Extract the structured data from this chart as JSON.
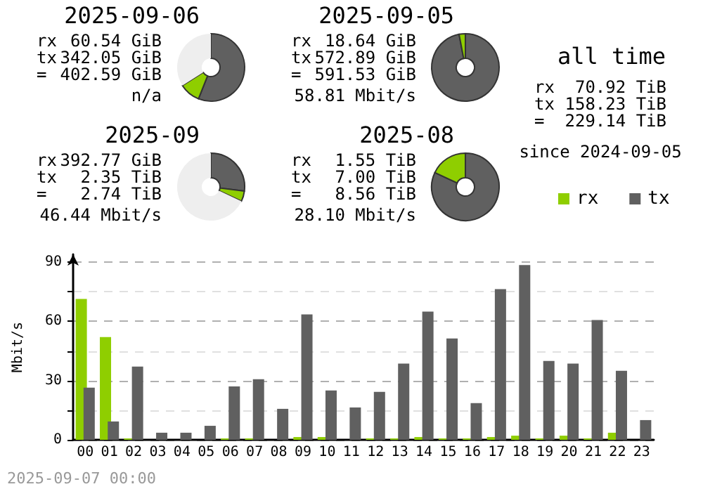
{
  "chart_data": [
    {
      "type": "donut",
      "title": "2025-09-06",
      "categories": [
        null,
        null,
        null
      ],
      "values": [
        56,
        10,
        34
      ],
      "colors": [
        "#606060",
        "#8fce00",
        "#eeeeee"
      ],
      "annotations": [
        "rx 60.54 GiB",
        "tx 342.05 GiB",
        "= 402.59 GiB",
        "n/a"
      ]
    },
    {
      "type": "donut",
      "title": "2025-09-05",
      "categories": [
        null,
        null
      ],
      "values": [
        97,
        3
      ],
      "colors": [
        "#606060",
        "#8fce00"
      ],
      "annotations": [
        "rx 18.64 GiB",
        "tx 572.89 GiB",
        "= 591.53 GiB",
        "58.81 Mbit/s"
      ]
    },
    {
      "type": "donut",
      "title": "2025-09",
      "categories": [
        null,
        null,
        null
      ],
      "values": [
        27,
        5,
        68
      ],
      "colors": [
        "#606060",
        "#8fce00",
        "#eeeeee"
      ],
      "annotations": [
        "rx 392.77 GiB",
        "tx 2.35 TiB",
        "= 2.74 TiB",
        "46.44 Mbit/s"
      ]
    },
    {
      "type": "donut",
      "title": "2025-08",
      "categories": [
        null,
        null
      ],
      "values": [
        82,
        18
      ],
      "colors": [
        "#606060",
        "#8fce00"
      ],
      "annotations": [
        "rx 1.55 TiB",
        "tx 7.00 TiB",
        "= 8.56 TiB",
        "28.10 Mbit/s"
      ]
    },
    {
      "type": "other",
      "title": "all time",
      "annotations": [
        "rx 70.92 TiB",
        "tx 158.23 TiB",
        "= 229.14 TiB",
        "since 2024-09-05"
      ]
    },
    {
      "type": "bar",
      "ylabel": "Mbit/s",
      "categories": [
        "00",
        "01",
        "02",
        "03",
        "04",
        "05",
        "06",
        "07",
        "08",
        "09",
        "10",
        "11",
        "12",
        "13",
        "14",
        "15",
        "16",
        "17",
        "18",
        "19",
        "20",
        "21",
        "22",
        "23"
      ],
      "series": [
        {
          "name": "rx",
          "color": "#8fce00",
          "values": [
            71.4,
            52.1,
            0.7,
            0,
            0,
            0,
            0.7,
            0.7,
            0,
            1.4,
            1.4,
            0,
            0.7,
            0.7,
            1.4,
            0.7,
            0.7,
            1.4,
            2.1,
            0.7,
            2.1,
            0.7,
            3.6,
            0
          ]
        },
        {
          "name": "tx",
          "color": "#606060",
          "values": [
            26.4,
            9.3,
            37.1,
            3.6,
            3.6,
            7.1,
            27.1,
            30.7,
            15.7,
            63.6,
            25,
            16.4,
            24.3,
            38.6,
            65,
            51.4,
            18.6,
            76.4,
            88.6,
            40,
            38.6,
            60.7,
            35,
            10
          ]
        }
      ],
      "ylim": [
        0,
        94
      ],
      "yticks": [
        0,
        {
          "value": 15,
          "label": null
        },
        30,
        {
          "value": 45,
          "label": null
        },
        60,
        {
          "value": 75,
          "label": null
        },
        90
      ],
      "grid": "y",
      "legend": "top right",
      "annotations": [
        "2025-09-07 00:00"
      ]
    }
  ]
}
